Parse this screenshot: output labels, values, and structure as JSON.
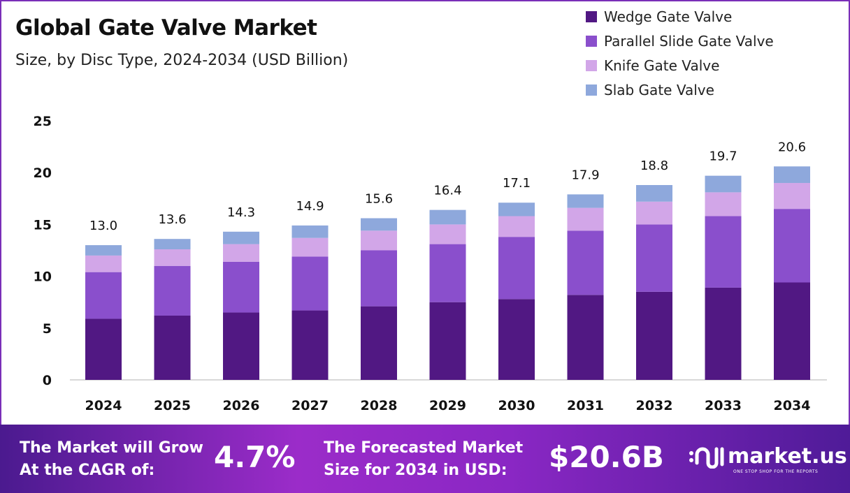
{
  "chart_data": {
    "type": "bar",
    "stacked": true,
    "title": "Global Gate Valve Market",
    "subtitle": "Size, by Disc Type, 2024-2034 (USD Billion)",
    "categories": [
      "2024",
      "2025",
      "2026",
      "2027",
      "2028",
      "2029",
      "2030",
      "2031",
      "2032",
      "2033",
      "2034"
    ],
    "series": [
      {
        "name": "Wedge Gate Valve",
        "color": "#511883",
        "values": [
          5.9,
          6.2,
          6.5,
          6.7,
          7.1,
          7.5,
          7.8,
          8.2,
          8.5,
          8.9,
          9.4
        ]
      },
      {
        "name": "Parallel Slide Gate Valve",
        "color": "#8a4fcc",
        "values": [
          4.5,
          4.8,
          4.9,
          5.2,
          5.4,
          5.6,
          6.0,
          6.2,
          6.5,
          6.9,
          7.1
        ]
      },
      {
        "name": "Knife Gate Valve",
        "color": "#d2a6e8",
        "values": [
          1.6,
          1.6,
          1.7,
          1.8,
          1.9,
          1.9,
          2.0,
          2.2,
          2.2,
          2.3,
          2.5
        ]
      },
      {
        "name": "Slab Gate Valve",
        "color": "#8ea8dc",
        "values": [
          1.0,
          1.0,
          1.2,
          1.2,
          1.2,
          1.4,
          1.3,
          1.3,
          1.6,
          1.6,
          1.6
        ]
      }
    ],
    "totals": [
      "13.0",
      "13.6",
      "14.3",
      "14.9",
      "15.6",
      "16.4",
      "17.1",
      "17.9",
      "18.8",
      "19.7",
      "20.6"
    ],
    "ylim": [
      0,
      25
    ],
    "yticks": [
      "0",
      "5",
      "10",
      "15",
      "20",
      "25"
    ],
    "grid": false,
    "legend": "top-right"
  },
  "footer": {
    "cagr_label_1": "The Market will Grow",
    "cagr_label_2": "At the CAGR of:",
    "cagr_value": "4.7%",
    "forecast_label_1": "The Forecasted Market",
    "forecast_label_2": "Size for 2034 in USD:",
    "forecast_value": "$20.6B",
    "brand": "market.us",
    "brand_tagline": "ONE STOP SHOP FOR THE REPORTS"
  }
}
